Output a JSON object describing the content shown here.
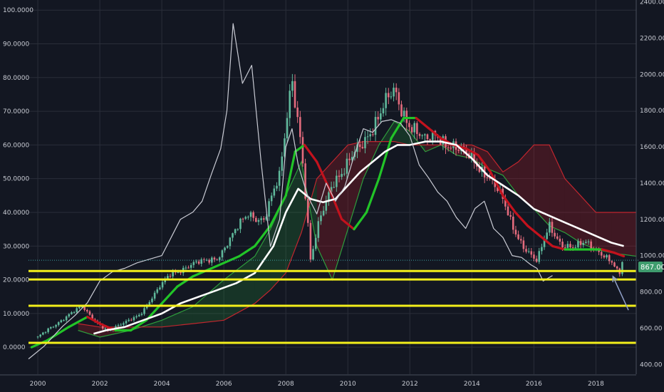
{
  "chart_data": {
    "type": "candlestick",
    "title": "",
    "left_axis": {
      "ticks": [
        "0.0000",
        "10.0000",
        "20.0000",
        "30.0000",
        "40.0000",
        "50.0000",
        "60.0000",
        "70.0000",
        "80.0000",
        "90.0000",
        "100.0000"
      ],
      "range": [
        -8,
        103
      ]
    },
    "right_axis": {
      "ticks": [
        "400.00",
        "600.00",
        "800.00",
        "1000.00",
        "1200.00",
        "1400.00",
        "1600.00",
        "1800.00",
        "2000.00",
        "2200.00",
        "2400.00"
      ],
      "range": [
        346,
        2410
      ]
    },
    "x_axis": {
      "ticks": [
        "2000",
        "2002",
        "2004",
        "2006",
        "2008",
        "2010",
        "2012",
        "2014",
        "2016",
        "2018"
      ],
      "range": [
        1999.7,
        2019.3
      ]
    },
    "price_label": "867.00",
    "horizontal_levels_left": [
      1.3,
      12.3,
      20.1,
      22.6
    ],
    "last_price_level_left": 25.8,
    "series": [
      {
        "name": "",
        "role": "close",
        "t": [
          2000.0,
          2000.5,
          2001.0,
          2001.4,
          2001.8,
          2002.3,
          2002.8,
          2003.3,
          2003.8,
          2004.3,
          2004.8,
          2005.3,
          2005.8,
          2006.3,
          2006.8,
          2007.3,
          2007.8,
          2008.2,
          2008.5,
          2008.8,
          2009.1,
          2009.5,
          2009.9,
          2010.3,
          2010.7,
          2011.1,
          2011.5,
          2011.8,
          2012.1,
          2012.5,
          2012.9,
          2013.3,
          2013.7,
          2014.1,
          2014.5,
          2014.9,
          2015.3,
          2015.7,
          2016.1,
          2016.5,
          2016.9,
          2017.3,
          2017.7,
          2018.1,
          2018.5,
          2018.75,
          2018.85
        ],
        "values": [
          3,
          6,
          10,
          12,
          8,
          5,
          7,
          10,
          16,
          22,
          24,
          25,
          27,
          33,
          40,
          38,
          50,
          82,
          60,
          25,
          38,
          50,
          52,
          58,
          65,
          70,
          75,
          70,
          66,
          60,
          63,
          61,
          57,
          55,
          52,
          45,
          36,
          30,
          25,
          36,
          31,
          29,
          31,
          29,
          25,
          21,
          25
        ]
      },
      {
        "name": "",
        "role": "moving-average-fast",
        "t": [
          1999.8,
          2000.3,
          2001.0,
          2001.6,
          2002.0,
          2002.5,
          2003.0,
          2003.5,
          2004.0,
          2004.5,
          2005.0,
          2005.5,
          2006.0,
          2006.5,
          2007.0,
          2007.5,
          2008.0,
          2008.3,
          2008.6,
          2009.0,
          2009.4,
          2009.8,
          2010.2,
          2010.6,
          2011.0,
          2011.4,
          2011.8,
          2012.2,
          2012.6,
          2013.0,
          2013.4,
          2013.8,
          2014.2,
          2014.6,
          2015.0,
          2015.4,
          2015.8,
          2016.2,
          2016.6,
          2017.0,
          2017.4,
          2017.8,
          2018.2,
          2018.6,
          2018.9
        ],
        "values": [
          0,
          2,
          6,
          9,
          7,
          5,
          5,
          8,
          13,
          18,
          21,
          23,
          25,
          27,
          30,
          36,
          45,
          58,
          60,
          55,
          47,
          38,
          35,
          40,
          50,
          62,
          68,
          68,
          65,
          62,
          60,
          59,
          57,
          52,
          45,
          40,
          36,
          33,
          30,
          29,
          29,
          29,
          29,
          28,
          27
        ]
      },
      {
        "name": "",
        "role": "moving-average-slow",
        "t": [
          2001.8,
          2002.2,
          2002.8,
          2003.4,
          2004.0,
          2004.6,
          2005.2,
          2005.8,
          2006.4,
          2007.0,
          2007.6,
          2008.0,
          2008.4,
          2008.8,
          2009.2,
          2009.6,
          2010.0,
          2010.4,
          2010.8,
          2011.2,
          2011.6,
          2012.0,
          2012.5,
          2013.0,
          2013.5,
          2014.0,
          2014.5,
          2015.0,
          2015.5,
          2016.0,
          2016.5,
          2017.0,
          2017.5,
          2018.0,
          2018.5,
          2018.9
        ],
        "values": [
          4,
          5,
          6,
          8,
          10,
          13,
          15,
          17,
          19,
          22,
          30,
          40,
          47,
          44,
          43,
          44,
          48,
          52,
          55,
          58,
          60,
          60,
          61,
          61,
          60,
          56,
          51,
          48,
          45,
          41,
          39,
          37,
          35,
          33,
          31,
          30
        ]
      },
      {
        "name": "",
        "role": "overlay-line",
        "t": [
          1999.7,
          2000.2,
          2000.8,
          2001.2,
          2001.6,
          2002.0,
          2002.4,
          2002.8,
          2003.2,
          2003.6,
          2004.0,
          2004.3,
          2004.6,
          2005.0,
          2005.3,
          2005.6,
          2005.9,
          2006.1,
          2006.3,
          2006.6,
          2006.9,
          2007.2,
          2007.5,
          2007.8,
          2008.0,
          2008.2,
          2008.4,
          2008.7,
          2009.0,
          2009.3,
          2009.6,
          2009.9,
          2010.2,
          2010.5,
          2010.8,
          2011.1,
          2011.4,
          2011.7,
          2012.0,
          2012.3,
          2012.6,
          2012.9,
          2013.2,
          2013.5,
          2013.8,
          2014.1,
          2014.4,
          2014.7,
          2015.0,
          2015.3,
          2015.6,
          2015.9,
          2016.1,
          2016.3,
          2016.6
        ],
        "values": [
          430,
          500,
          610,
          670,
          740,
          860,
          910,
          930,
          960,
          980,
          1000,
          1100,
          1200,
          1240,
          1300,
          1450,
          1590,
          1800,
          2280,
          1950,
          2050,
          1520,
          1050,
          1200,
          1600,
          1700,
          1500,
          1330,
          1230,
          1400,
          1300,
          1380,
          1550,
          1700,
          1680,
          1740,
          1750,
          1730,
          1660,
          1500,
          1430,
          1350,
          1300,
          1210,
          1150,
          1260,
          1300,
          1150,
          1100,
          1000,
          990,
          950,
          930,
          860,
          890
        ]
      },
      {
        "name": "",
        "role": "cloud-span-a",
        "t": [
          2001.3,
          2002.0,
          2003.0,
          2004.0,
          2005.0,
          2006.0,
          2007.0,
          2007.5,
          2008.0,
          2008.5,
          2009.0,
          2009.5,
          2010.0,
          2010.5,
          2011.0,
          2011.5,
          2012.0,
          2012.5,
          2013.0,
          2013.5,
          2014.0,
          2014.5,
          2015.0,
          2015.5,
          2016.0,
          2016.5,
          2017.0,
          2017.5,
          2018.0,
          2018.5,
          2019.3
        ],
        "values": [
          5,
          3,
          5,
          8,
          12,
          20,
          27,
          35,
          45,
          55,
          30,
          20,
          35,
          50,
          60,
          67,
          64,
          58,
          60,
          57,
          56,
          53,
          51,
          45,
          41,
          36,
          34,
          31,
          29,
          28,
          27
        ]
      },
      {
        "name": "",
        "role": "cloud-span-b",
        "t": [
          2001.3,
          2002.0,
          2003.0,
          2004.0,
          2005.0,
          2006.0,
          2007.0,
          2007.5,
          2008.0,
          2008.5,
          2009.0,
          2009.5,
          2010.0,
          2010.5,
          2011.0,
          2011.5,
          2012.0,
          2012.5,
          2013.0,
          2013.5,
          2014.0,
          2014.5,
          2015.0,
          2015.5,
          2016.0,
          2016.5,
          2017.0,
          2017.5,
          2018.0,
          2018.5,
          2019.3
        ],
        "values": [
          7,
          6,
          6,
          6,
          7,
          8,
          13,
          17,
          22,
          34,
          50,
          55,
          60,
          61,
          61,
          61,
          60,
          60,
          60,
          60,
          60,
          58,
          52,
          55,
          60,
          60,
          50,
          45,
          40,
          40,
          40
        ]
      }
    ]
  }
}
